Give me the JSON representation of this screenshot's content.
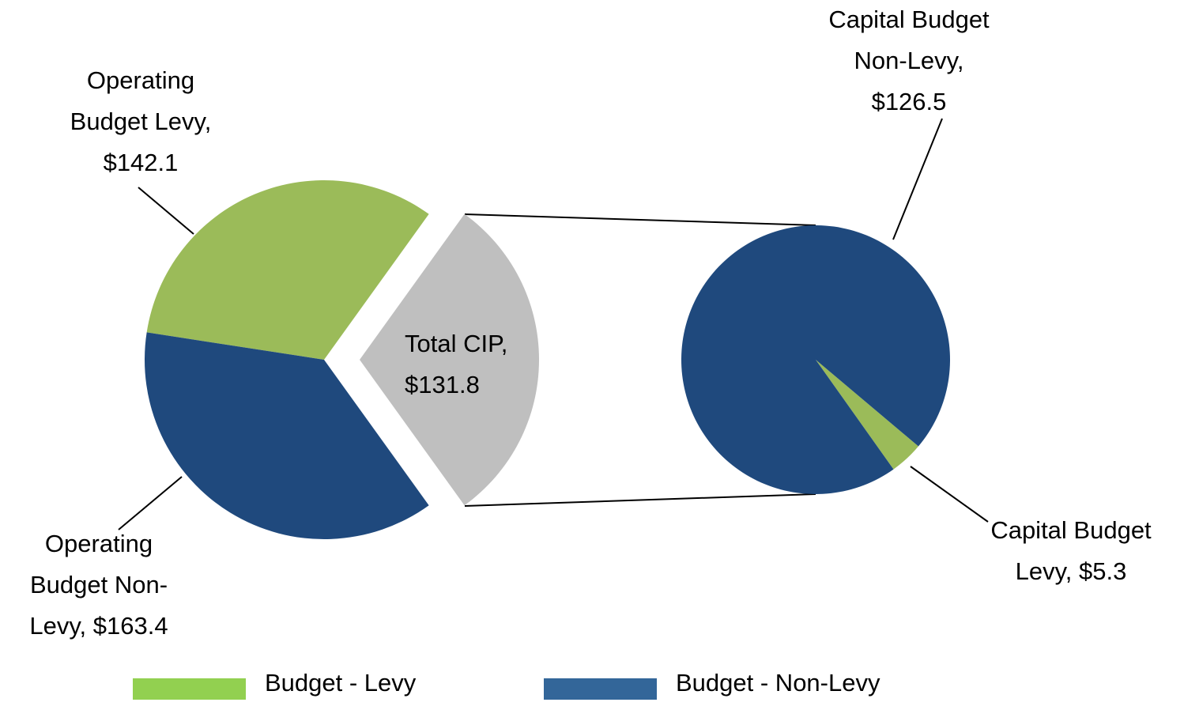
{
  "chart_data": {
    "type": "pie-of-pie",
    "main": {
      "categories": [
        "Operating Budget Levy",
        "Operating Budget Non-Levy",
        "Total CIP"
      ],
      "values": [
        142.1,
        163.4,
        131.8
      ],
      "colors": [
        "#9bbb59",
        "#1f497d",
        "#bfbfbf"
      ],
      "labels": [
        [
          "Operating",
          "Budget Levy,",
          "$142.1"
        ],
        [
          "Operating",
          "Budget Non-",
          "Levy,  $163.4"
        ],
        [
          "Total CIP,",
          "$131.8"
        ]
      ]
    },
    "secondary": {
      "categories": [
        "Capital Budget Non-Levy",
        "Capital Budget Levy"
      ],
      "values": [
        126.5,
        5.3
      ],
      "colors": [
        "#1f497d",
        "#9bbb59"
      ],
      "labels": [
        [
          "Capital Budget",
          "Non-Levy,",
          "$126.5"
        ],
        [
          "Capital Budget",
          "Levy,  $5.3"
        ]
      ]
    },
    "legend": [
      {
        "name": "Budget - Levy",
        "color": "#92d050"
      },
      {
        "name": "Budget - Non-Levy",
        "color": "#336699"
      }
    ]
  }
}
